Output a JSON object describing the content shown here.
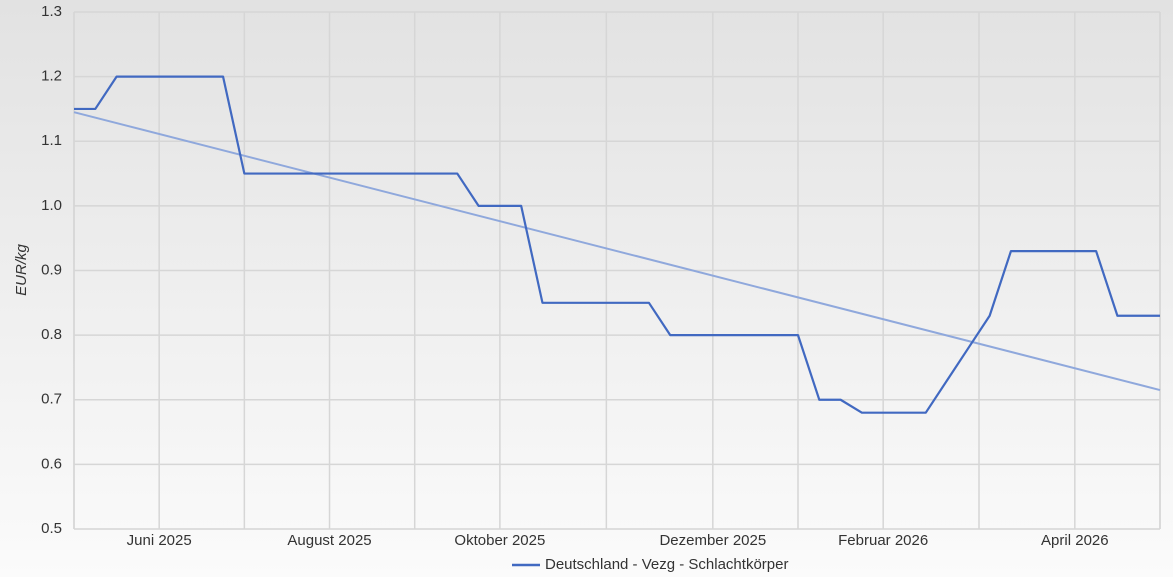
{
  "chart_data": {
    "type": "line",
    "y_label": "EUR/kg",
    "categories": [
      null,
      null,
      null,
      null,
      "Juni 2025",
      null,
      null,
      null,
      null,
      null,
      null,
      null,
      "August 2025",
      null,
      null,
      null,
      null,
      null,
      null,
      null,
      "Oktober 2025",
      null,
      null,
      null,
      null,
      null,
      null,
      null,
      null,
      null,
      "Dezember 2025",
      null,
      null,
      null,
      null,
      null,
      null,
      null,
      "Februar 2026",
      null,
      null,
      null,
      null,
      null,
      null,
      null,
      null,
      "April 2026",
      null,
      null,
      null,
      null
    ],
    "series": [
      {
        "name": "Deutschland - Vezg - Schlachtkörper",
        "color": "#4169c1",
        "values": [
          1.15,
          1.15,
          1.2,
          1.2,
          1.2,
          1.2,
          1.2,
          1.2,
          1.05,
          1.05,
          1.05,
          1.05,
          1.05,
          1.05,
          1.05,
          1.05,
          1.05,
          1.05,
          1.05,
          1.0,
          1.0,
          1.0,
          0.85,
          0.85,
          0.85,
          0.85,
          0.85,
          0.85,
          0.8,
          0.8,
          0.8,
          0.8,
          0.8,
          0.8,
          0.8,
          0.7,
          0.7,
          0.68,
          0.68,
          0.68,
          0.68,
          0.73,
          0.78,
          0.83,
          0.93,
          0.93,
          0.93,
          0.93,
          0.93,
          0.83,
          0.83,
          0.83
        ]
      }
    ],
    "trendline": {
      "color": "#8fa8dc",
      "values": [
        1.145,
        0.715
      ]
    },
    "ylim": [
      0.5,
      1.3
    ],
    "yticks": [
      0.5,
      0.6,
      0.7,
      0.8,
      0.9,
      {
        "value": 1,
        "label": "1.0"
      },
      1.1,
      1.2,
      1.3
    ],
    "grid": true,
    "legend": "bottom"
  }
}
